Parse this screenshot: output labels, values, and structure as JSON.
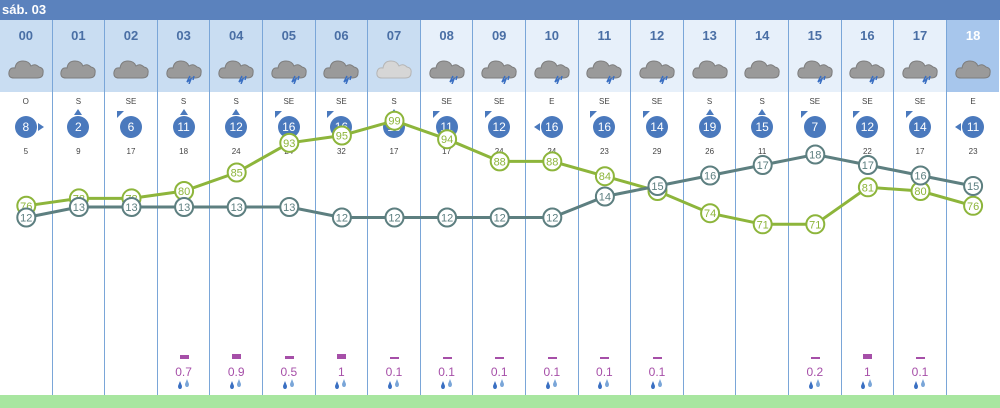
{
  "day": {
    "title": "sáb. 03"
  },
  "colors": {
    "header_dark": "#5b82bd",
    "header_light": "#c9ddf2",
    "header_pale": "#e7f0fa",
    "column_line": "#7aa6d8",
    "wind_circle": "#4a79bd",
    "humidity_line": "#8db53b",
    "temperature_line": "#5d7f80",
    "precip": "#a64fa8",
    "bottom_bar": "#a8e6a0"
  },
  "hours": [
    {
      "hour": "00",
      "icon": "cloud-icon",
      "dir": "O",
      "wind": "8",
      "arrow": "E",
      "gust": "5",
      "temp": 12,
      "hum": 76,
      "precip": null
    },
    {
      "hour": "01",
      "icon": "cloud-icon",
      "dir": "S",
      "wind": "2",
      "arrow": "N",
      "gust": "9",
      "temp": 13,
      "hum": 78,
      "precip": null
    },
    {
      "hour": "02",
      "icon": "cloud-icon",
      "dir": "SE",
      "wind": "6",
      "arrow": "NW",
      "gust": "17",
      "temp": 13,
      "hum": 78,
      "precip": null
    },
    {
      "hour": "03",
      "icon": "rain-cloud-icon",
      "dir": "S",
      "wind": "11",
      "arrow": "N",
      "gust": "18",
      "temp": 13,
      "hum": 80,
      "precip": "0.7"
    },
    {
      "hour": "04",
      "icon": "rain-cloud-icon",
      "dir": "S",
      "wind": "12",
      "arrow": "N",
      "gust": "24",
      "temp": 13,
      "hum": 85,
      "precip": "0.9"
    },
    {
      "hour": "05",
      "icon": "rain-cloud-icon",
      "dir": "SE",
      "wind": "16",
      "arrow": "NW",
      "gust": "24",
      "temp": 13,
      "hum": 93,
      "precip": "0.5"
    },
    {
      "hour": "06",
      "icon": "rain-cloud-icon",
      "dir": "SE",
      "wind": "16",
      "arrow": "NW",
      "gust": "32",
      "temp": 12,
      "hum": 95,
      "precip": "1"
    },
    {
      "hour": "07",
      "icon": "light-cloud-icon",
      "dir": "S",
      "wind": "18",
      "arrow": "N",
      "gust": "17",
      "temp": 12,
      "hum": 99,
      "precip": "0.1"
    },
    {
      "hour": "08",
      "icon": "rain-cloud-icon",
      "dir": "SE",
      "wind": "11",
      "arrow": "NW",
      "gust": "17",
      "temp": 12,
      "hum": 94,
      "precip": "0.1"
    },
    {
      "hour": "09",
      "icon": "rain-cloud-icon",
      "dir": "SE",
      "wind": "12",
      "arrow": "NW",
      "gust": "24",
      "temp": 12,
      "hum": 88,
      "precip": "0.1"
    },
    {
      "hour": "10",
      "icon": "rain-cloud-icon",
      "dir": "E",
      "wind": "16",
      "arrow": "W",
      "gust": "24",
      "temp": 12,
      "hum": 88,
      "precip": "0.1"
    },
    {
      "hour": "11",
      "icon": "rain-cloud-icon",
      "dir": "SE",
      "wind": "16",
      "arrow": "NW",
      "gust": "23",
      "temp": 14,
      "hum": 84,
      "precip": "0.1"
    },
    {
      "hour": "12",
      "icon": "rain-cloud-icon",
      "dir": "SE",
      "wind": "14",
      "arrow": "NW",
      "gust": "29",
      "temp": 15,
      "hum": 80,
      "precip": "0.1"
    },
    {
      "hour": "13",
      "icon": "cloud-icon",
      "dir": "S",
      "wind": "19",
      "arrow": "N",
      "gust": "26",
      "temp": 16,
      "hum": 74,
      "precip": null
    },
    {
      "hour": "14",
      "icon": "cloud-icon",
      "dir": "S",
      "wind": "15",
      "arrow": "N",
      "gust": "11",
      "temp": 17,
      "hum": 71,
      "precip": null
    },
    {
      "hour": "15",
      "icon": "rain-cloud-icon",
      "dir": "SE",
      "wind": "7",
      "arrow": "NW",
      "gust": "20",
      "temp": 18,
      "hum": 71,
      "precip": "0.2"
    },
    {
      "hour": "16",
      "icon": "rain-cloud-icon",
      "dir": "SE",
      "wind": "12",
      "arrow": "NW",
      "gust": "22",
      "temp": 17,
      "hum": 81,
      "precip": "1"
    },
    {
      "hour": "17",
      "icon": "rain-cloud-icon",
      "dir": "SE",
      "wind": "14",
      "arrow": "NW",
      "gust": "17",
      "temp": 16,
      "hum": 80,
      "precip": "0.1"
    },
    {
      "hour": "18",
      "icon": "cloud-icon",
      "dir": "E",
      "wind": "11",
      "arrow": "W",
      "gust": "23",
      "temp": 15,
      "hum": 76,
      "precip": null
    }
  ],
  "current_hour": "18",
  "dimmed_hours": [
    "08",
    "09",
    "10",
    "11",
    "12",
    "13",
    "14",
    "15",
    "16",
    "17"
  ]
}
